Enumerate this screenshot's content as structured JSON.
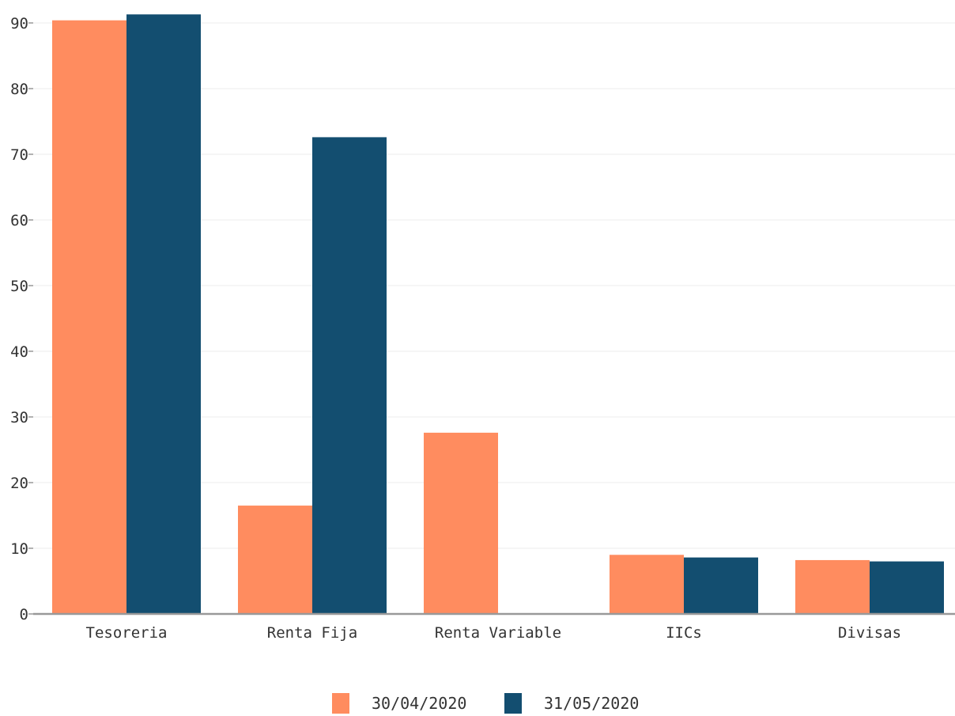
{
  "chart_data": {
    "type": "bar",
    "categories": [
      "Tesoreria",
      "Renta Fija",
      "Renta Variable",
      "IICs",
      "Divisas"
    ],
    "series": [
      {
        "name": "30/04/2020",
        "values": [
          90.4,
          16.5,
          27.6,
          9.0,
          8.2
        ],
        "color": "#ff8c5f"
      },
      {
        "name": "31/05/2020",
        "values": [
          91.3,
          72.6,
          0,
          8.6,
          8.0
        ],
        "color": "#134e70"
      }
    ],
    "y_ticks": [
      "0",
      "10",
      "20",
      "30",
      "40",
      "50",
      "60",
      "70",
      "80",
      "90"
    ],
    "ylim": [
      0,
      93
    ],
    "grid": true,
    "legend_position": "bottom-center"
  }
}
